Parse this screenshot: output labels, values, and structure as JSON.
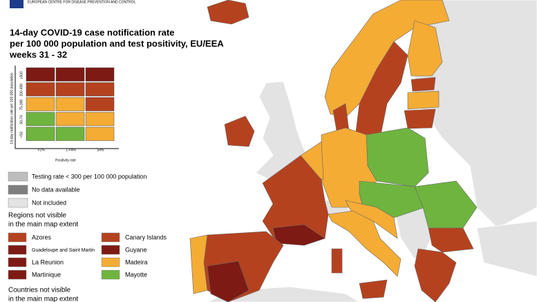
{
  "header": {
    "agency": "EUROPEAN CENTRE FOR DISEASE PREVENTION AND CONTROL",
    "title": [
      "14-day COVID-19 case notification rate",
      "per 100 000 population and test positivity, EU/EEA",
      "weeks 31 - 32"
    ]
  },
  "legend_grid": {
    "y_label": "14-day notification rate per 100 000 population",
    "x_label": "Positivity rate",
    "rows": [
      "≥500",
      "200-499",
      "75-199",
      "50-74",
      "<50"
    ],
    "columns": [
      "<1%",
      "1-<4%",
      "≥4%"
    ],
    "colors": [
      [
        "#7d1a14",
        "#7d1a14",
        "#7d1a14"
      ],
      [
        "#b5421f",
        "#b5421f",
        "#b5421f"
      ],
      [
        "#f4ac35",
        "#f4ac35",
        "#b5421f"
      ],
      [
        "#6fb43f",
        "#f4ac35",
        "#f4ac35"
      ],
      [
        "#6fb43f",
        "#6fb43f",
        "#f4ac35"
      ]
    ]
  },
  "keys": [
    {
      "label": "Testing rate < 300 per 100 000 population",
      "color": "#bdbdbd"
    },
    {
      "label": "No data available",
      "color": "#7f7f7f"
    },
    {
      "label": "Not included",
      "color": "#e3e3e3"
    }
  ],
  "regions_heading": [
    "Regions not visible",
    "in the main map extent"
  ],
  "regions": [
    {
      "name": "Azores",
      "color": "#b5421f"
    },
    {
      "name": "Canary Islands",
      "color": "#b5421f"
    },
    {
      "name": "Guadeloupe and Saint Martin",
      "color": "#7d1a14"
    },
    {
      "name": "Guyane",
      "color": "#7d1a14"
    },
    {
      "name": "La Reunion",
      "color": "#7d1a14"
    },
    {
      "name": "Madeira",
      "color": "#f4ac35"
    },
    {
      "name": "Martinique",
      "color": "#7d1a14"
    },
    {
      "name": "Mayotte",
      "color": "#6fb43f"
    }
  ],
  "countries_heading": [
    "Countries not visible",
    "in the main map extent"
  ]
}
